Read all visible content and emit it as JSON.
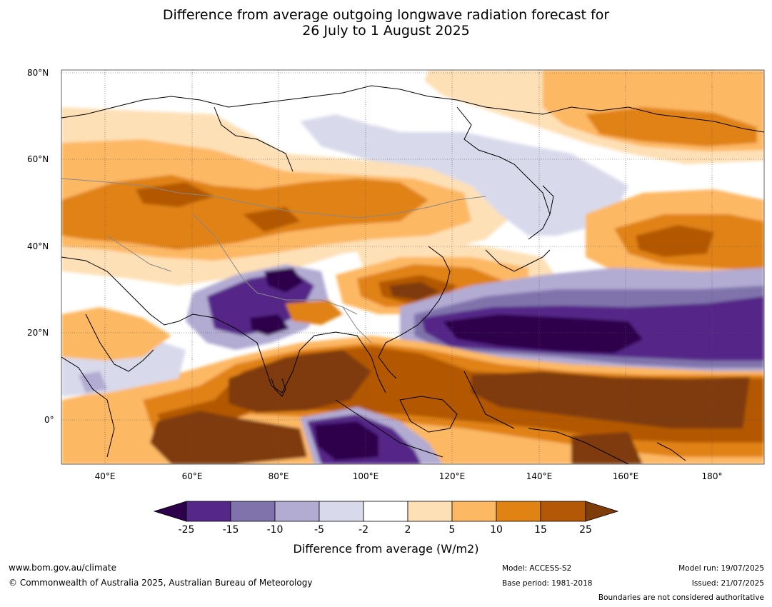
{
  "title_line1": "Difference from average outgoing longwave radiation forecast for",
  "title_line2": "26 July to 1 August 2025",
  "lat_labels": [
    "80°N",
    "60°N",
    "40°N",
    "20°N",
    "0°"
  ],
  "lon_labels": [
    "40°E",
    "60°E",
    "80°E",
    "100°E",
    "120°E",
    "140°E",
    "160°E",
    "180°"
  ],
  "colorbar": {
    "ticks": [
      "-25",
      "-15",
      "-10",
      "-5",
      "-2",
      "2",
      "5",
      "10",
      "15",
      "25"
    ],
    "colors": [
      "#2d004b",
      "#542788",
      "#8073ac",
      "#b2abd2",
      "#d8daeb",
      "#ffffff",
      "#fee0b6",
      "#fdb863",
      "#e08214",
      "#b35806",
      "#7f3b08"
    ],
    "title": "Difference from average (W/m2)"
  },
  "footer": {
    "website": "www.bom.gov.au/climate",
    "copyright": "© Commonwealth of Australia 2025, Australian Bureau of Meteorology",
    "model": "Model: ACCESS-S2",
    "base_period": "Base period: 1981-2018",
    "model_run": "Model run: 19/07/2025",
    "issued": "Issued: 21/07/2025",
    "disclaimer": "Boundaries are not considered authoritative"
  }
}
